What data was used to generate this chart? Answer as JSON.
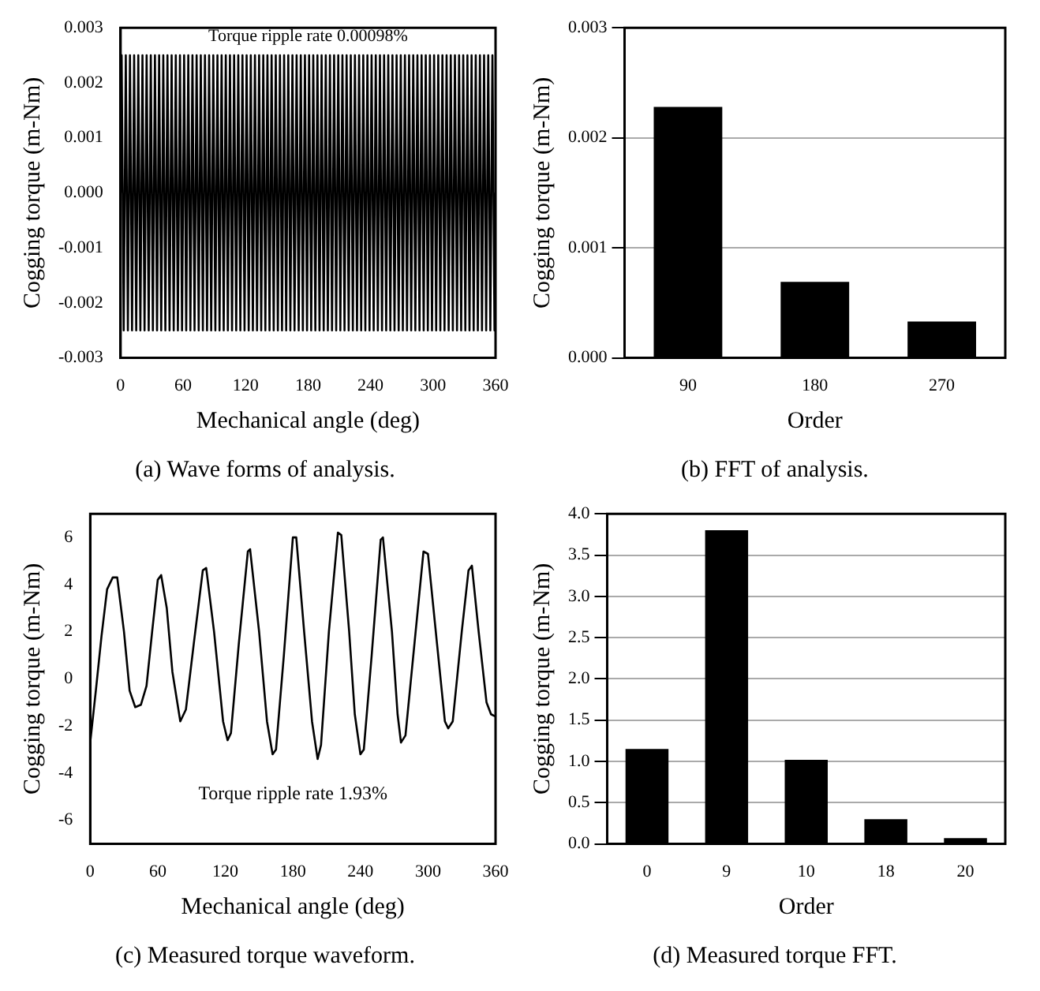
{
  "chart_data": [
    {
      "type": "line",
      "xlabel": "Mechanical angle (deg)",
      "ylabel": "Cogging torque (m-Nm)",
      "annotations": [
        "Torque ripple rate 0.00098%",
        "(a) Wave forms of analysis."
      ],
      "color": "#000000",
      "marker": "none",
      "grid": false,
      "x": [
        0,
        1,
        3,
        5,
        7,
        9,
        11,
        13,
        15,
        17,
        19,
        21,
        23,
        25,
        27,
        29,
        31,
        33,
        35,
        37,
        39,
        41,
        43,
        45,
        47,
        49,
        51,
        53,
        55,
        57,
        59,
        61,
        63,
        65,
        67,
        69,
        71,
        73,
        75,
        77,
        79,
        81,
        83,
        85,
        87,
        89,
        91,
        93,
        95,
        97,
        99,
        101,
        103,
        105,
        107,
        109,
        111,
        113,
        115,
        117,
        119,
        121,
        123,
        125,
        127,
        129,
        131,
        133,
        135,
        137,
        139,
        141,
        143,
        145,
        147,
        149,
        151,
        153,
        155,
        157,
        159,
        161,
        163,
        165,
        167,
        169,
        171,
        173,
        175,
        177,
        179,
        181,
        183,
        185,
        187,
        189,
        191,
        193,
        195,
        197,
        199,
        201,
        203,
        205,
        207,
        209,
        211,
        213,
        215,
        217,
        219,
        221,
        223,
        225,
        227,
        229,
        231,
        233,
        235,
        237,
        239,
        241,
        243,
        245,
        247,
        249,
        251,
        253,
        255,
        257,
        259,
        261,
        263,
        265,
        267,
        269,
        271,
        273,
        275,
        277,
        279,
        281,
        283,
        285,
        287,
        289,
        291,
        293,
        295,
        297,
        299,
        301,
        303,
        305,
        307,
        309,
        311,
        313,
        315,
        317,
        319,
        321,
        323,
        325,
        327,
        329,
        331,
        333,
        335,
        337,
        339,
        341,
        343,
        345,
        347,
        349,
        351,
        353,
        355,
        357,
        359,
        360
      ],
      "values": [
        0,
        0.0025,
        -0.0025,
        0.0025,
        -0.0025,
        0.0025,
        -0.0025,
        0.0025,
        -0.0025,
        0.0025,
        -0.0025,
        0.0025,
        -0.0025,
        0.0025,
        -0.0025,
        0.0025,
        -0.0025,
        0.0025,
        -0.0025,
        0.0025,
        -0.0025,
        0.0025,
        -0.0025,
        0.0025,
        -0.0025,
        0.0025,
        -0.0025,
        0.0025,
        -0.0025,
        0.0025,
        -0.0025,
        0.0025,
        -0.0025,
        0.0025,
        -0.0025,
        0.0025,
        -0.0025,
        0.0025,
        -0.0025,
        0.0025,
        -0.0025,
        0.0025,
        -0.0025,
        0.0025,
        -0.0025,
        0.0025,
        -0.0025,
        0.0025,
        -0.0025,
        0.0025,
        -0.0025,
        0.0025,
        -0.0025,
        0.0025,
        -0.0025,
        0.0025,
        -0.0025,
        0.0025,
        -0.0025,
        0.0025,
        -0.0025,
        0.0025,
        -0.0025,
        0.0025,
        -0.0025,
        0.0025,
        -0.0025,
        0.0025,
        -0.0025,
        0.0025,
        -0.0025,
        0.0025,
        -0.0025,
        0.0025,
        -0.0025,
        0.0025,
        -0.0025,
        0.0025,
        -0.0025,
        0.0025,
        -0.0025,
        0.0025,
        -0.0025,
        0.0025,
        -0.0025,
        0.0025,
        -0.0025,
        0.0025,
        -0.0025,
        0.0025,
        -0.0025,
        0.0025,
        -0.0025,
        0.0025,
        -0.0025,
        0.0025,
        -0.0025,
        0.0025,
        -0.0025,
        0.0025,
        -0.0025,
        0.0025,
        -0.0025,
        0.0025,
        -0.0025,
        0.0025,
        -0.0025,
        0.0025,
        -0.0025,
        0.0025,
        -0.0025,
        0.0025,
        -0.0025,
        0.0025,
        -0.0025,
        0.0025,
        -0.0025,
        0.0025,
        -0.0025,
        0.0025,
        -0.0025,
        0.0025,
        -0.0025,
        0.0025,
        -0.0025,
        0.0025,
        -0.0025,
        0.0025,
        -0.0025,
        0.0025,
        -0.0025,
        0.0025,
        -0.0025,
        0.0025,
        -0.0025,
        0.0025,
        -0.0025,
        0.0025,
        -0.0025,
        0.0025,
        -0.0025,
        0.0025,
        -0.0025,
        0.0025,
        -0.0025,
        0.0025,
        -0.0025,
        0.0025,
        -0.0025,
        0.0025,
        -0.0025,
        0.0025,
        -0.0025,
        0.0025,
        -0.0025,
        0.0025,
        -0.0025,
        0.0025,
        -0.0025,
        0.0025,
        -0.0025,
        0.0025,
        -0.0025,
        0.0025,
        -0.0025,
        0.0025,
        -0.0025,
        0.0025,
        -0.0025,
        0.0025,
        -0.0025,
        0.0025,
        -0.0025,
        0.0025,
        -0.0025,
        0.0025,
        -0.0025,
        0.0025,
        -0.0025,
        0.0025,
        -0.0025,
        0
      ],
      "xlim": [
        0,
        360
      ],
      "xticks": [
        0,
        60,
        120,
        180,
        240,
        300,
        360
      ],
      "ylim": [
        -0.003,
        0.003
      ],
      "yticks": [
        -0.003,
        -0.002,
        -0.001,
        {
          "value": 0,
          "label": "0.000"
        },
        0.001,
        0.002,
        0.003
      ]
    },
    {
      "type": "bar",
      "xlabel": "Order",
      "ylabel": "Cogging torque (m-Nm)",
      "annotations": [
        "(b) FFT of analysis."
      ],
      "categories": [
        "90",
        "180",
        "270"
      ],
      "values": [
        0.00228,
        0.00069,
        0.00033
      ],
      "color": "#000000",
      "grid": "y",
      "ylim": [
        0,
        0.003
      ],
      "yticks": [
        {
          "value": 0,
          "label": "0.000"
        },
        0.001,
        0.002,
        0.003
      ]
    },
    {
      "type": "line",
      "xlabel": "Mechanical angle (deg)",
      "ylabel": "Cogging torque (m-Nm)",
      "annotations": [
        "Torque ripple rate 1.93%",
        "(c) Measured torque waveform."
      ],
      "color": "#000000",
      "marker": "none",
      "grid": false,
      "x": [
        0,
        5,
        10,
        15,
        20,
        24,
        30,
        35,
        40,
        45,
        50,
        55,
        60,
        63,
        68,
        73,
        80,
        85,
        92,
        100,
        103,
        110,
        118,
        122,
        125,
        132,
        140,
        142,
        150,
        157,
        162,
        165,
        172,
        180,
        183,
        190,
        197,
        202,
        205,
        212,
        220,
        223,
        230,
        235,
        240,
        243,
        250,
        258,
        260,
        268,
        273,
        276,
        280,
        288,
        296,
        300,
        308,
        315,
        318,
        322,
        330,
        336,
        339,
        345,
        352,
        356,
        360
      ],
      "values": [
        -2.7,
        -0.5,
        1.8,
        3.8,
        4.3,
        4.3,
        2.0,
        -0.5,
        -1.2,
        -1.1,
        -0.3,
        2,
        4.2,
        4.4,
        3,
        0.3,
        -1.8,
        -1.3,
        1.5,
        4.6,
        4.7,
        2,
        -1.8,
        -2.6,
        -2.3,
        1.5,
        5.4,
        5.5,
        2,
        -1.8,
        -3.2,
        -3.0,
        1,
        6.0,
        6.0,
        2,
        -1.8,
        -3.4,
        -2.8,
        2,
        6.2,
        6.1,
        2,
        -1.5,
        -3.2,
        -3.0,
        1,
        5.9,
        6.0,
        2,
        -1.5,
        -2.7,
        -2.4,
        1.5,
        5.4,
        5.3,
        1.5,
        -1.8,
        -2.1,
        -1.8,
        2,
        4.6,
        4.8,
        2,
        -1,
        -1.5,
        -1.6
      ],
      "xlim": [
        0,
        360
      ],
      "xticks": [
        0,
        60,
        120,
        180,
        240,
        300,
        360
      ],
      "ylim": [
        -7,
        7
      ],
      "yticks": [
        -6,
        -4,
        -2,
        0,
        2,
        4,
        6
      ]
    },
    {
      "type": "bar",
      "xlabel": "Order",
      "ylabel": "Cogging torque (m-Nm)",
      "annotations": [
        "(d) Measured torque FFT."
      ],
      "categories": [
        "0",
        "9",
        "10",
        "18",
        "20"
      ],
      "values": [
        1.15,
        3.8,
        1.02,
        0.3,
        0.07
      ],
      "color": "#000000",
      "grid": "y",
      "ylim": [
        0,
        4
      ],
      "yticks": [
        {
          "value": 0,
          "label": "0.0"
        },
        0.5,
        {
          "value": 1,
          "label": "1.0"
        },
        1.5,
        {
          "value": 2,
          "label": "2.0"
        },
        2.5,
        {
          "value": 3,
          "label": "3.0"
        },
        3.5,
        {
          "value": 4,
          "label": "4.0"
        }
      ]
    }
  ]
}
